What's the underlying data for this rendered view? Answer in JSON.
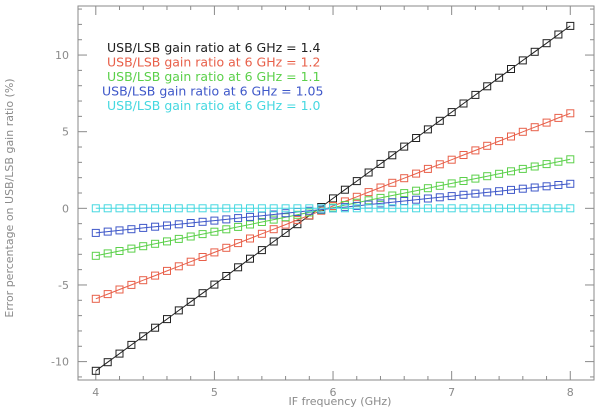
{
  "chart_data": {
    "type": "line",
    "xlabel": "IF frequency (GHz)",
    "ylabel": "Error percentage on USB/LSB gain ratio (%)",
    "xlim": [
      3.85,
      8.2
    ],
    "ylim": [
      -11.2,
      13.2
    ],
    "x_ticks": [
      4,
      5,
      6,
      7,
      8
    ],
    "y_ticks": [
      -10,
      -5,
      0,
      5,
      10
    ],
    "grid": false,
    "legend_placement": "top-left",
    "marker": "open-square",
    "x": [
      4.0,
      4.1,
      4.2,
      4.3,
      4.4,
      4.5,
      4.6,
      4.7,
      4.8,
      4.9,
      5.0,
      5.1,
      5.2,
      5.3,
      5.4,
      5.5,
      5.6,
      5.7,
      5.8,
      5.9,
      6.0,
      6.1,
      6.2,
      6.3,
      6.4,
      6.5,
      6.6,
      6.7,
      6.8,
      6.9,
      7.0,
      7.1,
      7.2,
      7.3,
      7.4,
      7.5,
      7.6,
      7.7,
      7.8,
      7.9,
      8.0
    ],
    "series": [
      {
        "name": "USB/LSB gain ratio at 6 GHz = 1.4",
        "color": "#202020",
        "y_start": -10.6,
        "y_end": 11.9
      },
      {
        "name": "USB/LSB gain ratio at 6 GHz = 1.2",
        "color": "#e8604a",
        "y_start": -5.9,
        "y_end": 6.2
      },
      {
        "name": "USB/LSB gain ratio at 6 GHz = 1.1",
        "color": "#5bd04a",
        "y_start": -3.1,
        "y_end": 3.2
      },
      {
        "name": "USB/LSB gain ratio at 6 GHz = 1.05",
        "color": "#3f58c9",
        "y_start": -1.6,
        "y_end": 1.6
      },
      {
        "name": "USB/LSB gain ratio at 6 GHz = 1.0",
        "color": "#46d8e0",
        "y_start": 0.0,
        "y_end": 0.0
      }
    ]
  }
}
